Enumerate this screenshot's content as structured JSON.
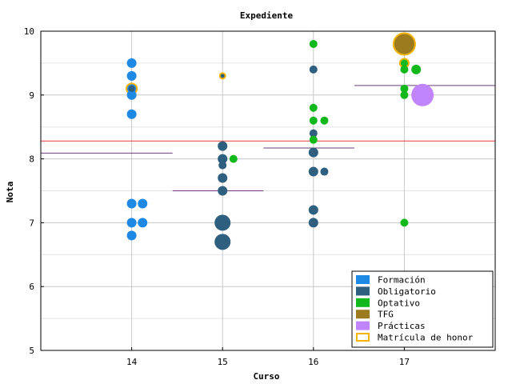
{
  "chart_data": {
    "type": "scatter",
    "title": "Expediente",
    "xlabel": "Curso",
    "ylabel": "Nota",
    "xlim": [
      13,
      18
    ],
    "ylim": [
      5,
      10
    ],
    "xticks": [
      14,
      15,
      16,
      17
    ],
    "yticks": [
      5,
      6,
      7,
      8,
      9,
      10
    ],
    "grid": true,
    "legend_position": "bottom-right",
    "colors": {
      "formacion": "#1e88e5",
      "obligatorio": "#2e5f7f",
      "optativo": "#11b81b",
      "tfg": "#9c7a1e",
      "practicas": "#c084fc",
      "honor": "#f5b400",
      "overall_mean": "#e53935",
      "year_mean": "#6a3d7a"
    },
    "legend": [
      {
        "key": "formacion",
        "label": "Formación"
      },
      {
        "key": "obligatorio",
        "label": "Obligatorio"
      },
      {
        "key": "optativo",
        "label": "Optativo"
      },
      {
        "key": "tfg",
        "label": "TFG"
      },
      {
        "key": "practicas",
        "label": "Prácticas"
      },
      {
        "key": "honor",
        "label": "Matrícula de honor"
      }
    ],
    "overall_mean": 8.28,
    "year_means": [
      {
        "x0": 13,
        "x1": 14.45,
        "y": 8.09
      },
      {
        "x0": 14.45,
        "x1": 15.45,
        "y": 7.5
      },
      {
        "x0": 15.45,
        "x1": 16.45,
        "y": 8.17
      },
      {
        "x0": 16.45,
        "x1": 18,
        "y": 9.15
      }
    ],
    "series": [
      {
        "key": "formacion",
        "points": [
          {
            "x": 14,
            "y": 9.5,
            "s": 6
          },
          {
            "x": 14,
            "y": 9.3,
            "s": 6
          },
          {
            "x": 14,
            "y": 9.1,
            "s": 6,
            "honor": true
          },
          {
            "x": 14,
            "y": 9.0,
            "s": 6
          },
          {
            "x": 14,
            "y": 8.7,
            "s": 6
          },
          {
            "x": 14,
            "y": 7.3,
            "s": 6
          },
          {
            "x": 14.12,
            "y": 7.3,
            "s": 6
          },
          {
            "x": 14,
            "y": 7.0,
            "s": 6
          },
          {
            "x": 14.12,
            "y": 7.0,
            "s": 6
          },
          {
            "x": 14,
            "y": 6.8,
            "s": 6
          }
        ]
      },
      {
        "key": "obligatorio",
        "points": [
          {
            "x": 14,
            "y": 9.1,
            "s": 4
          },
          {
            "x": 15,
            "y": 9.3,
            "s": 3,
            "honor": true
          },
          {
            "x": 15,
            "y": 8.2,
            "s": 6
          },
          {
            "x": 15,
            "y": 8.0,
            "s": 6
          },
          {
            "x": 15,
            "y": 7.9,
            "s": 5
          },
          {
            "x": 15,
            "y": 7.7,
            "s": 6
          },
          {
            "x": 15,
            "y": 7.5,
            "s": 6
          },
          {
            "x": 15,
            "y": 7.0,
            "s": 10
          },
          {
            "x": 15,
            "y": 6.7,
            "s": 10
          },
          {
            "x": 16,
            "y": 9.4,
            "s": 5
          },
          {
            "x": 16,
            "y": 8.4,
            "s": 5
          },
          {
            "x": 16,
            "y": 8.1,
            "s": 6
          },
          {
            "x": 16,
            "y": 7.8,
            "s": 6
          },
          {
            "x": 16.12,
            "y": 7.8,
            "s": 5
          },
          {
            "x": 16,
            "y": 7.2,
            "s": 6
          },
          {
            "x": 16,
            "y": 7.0,
            "s": 6
          }
        ]
      },
      {
        "key": "optativo",
        "points": [
          {
            "x": 15.12,
            "y": 8.0,
            "s": 5
          },
          {
            "x": 16,
            "y": 9.8,
            "s": 5
          },
          {
            "x": 16,
            "y": 8.8,
            "s": 5
          },
          {
            "x": 16,
            "y": 8.6,
            "s": 5
          },
          {
            "x": 16.12,
            "y": 8.6,
            "s": 5
          },
          {
            "x": 16,
            "y": 8.3,
            "s": 5
          },
          {
            "x": 17,
            "y": 9.5,
            "s": 5,
            "honor": true
          },
          {
            "x": 17,
            "y": 9.4,
            "s": 5
          },
          {
            "x": 17.13,
            "y": 9.4,
            "s": 6
          },
          {
            "x": 17,
            "y": 9.1,
            "s": 5
          },
          {
            "x": 17,
            "y": 9.0,
            "s": 5
          },
          {
            "x": 17,
            "y": 7.0,
            "s": 5
          }
        ]
      },
      {
        "key": "tfg",
        "points": [
          {
            "x": 17,
            "y": 9.8,
            "s": 13,
            "honor": true
          }
        ]
      },
      {
        "key": "practicas",
        "points": [
          {
            "x": 17.2,
            "y": 9.0,
            "s": 14
          }
        ]
      }
    ]
  }
}
